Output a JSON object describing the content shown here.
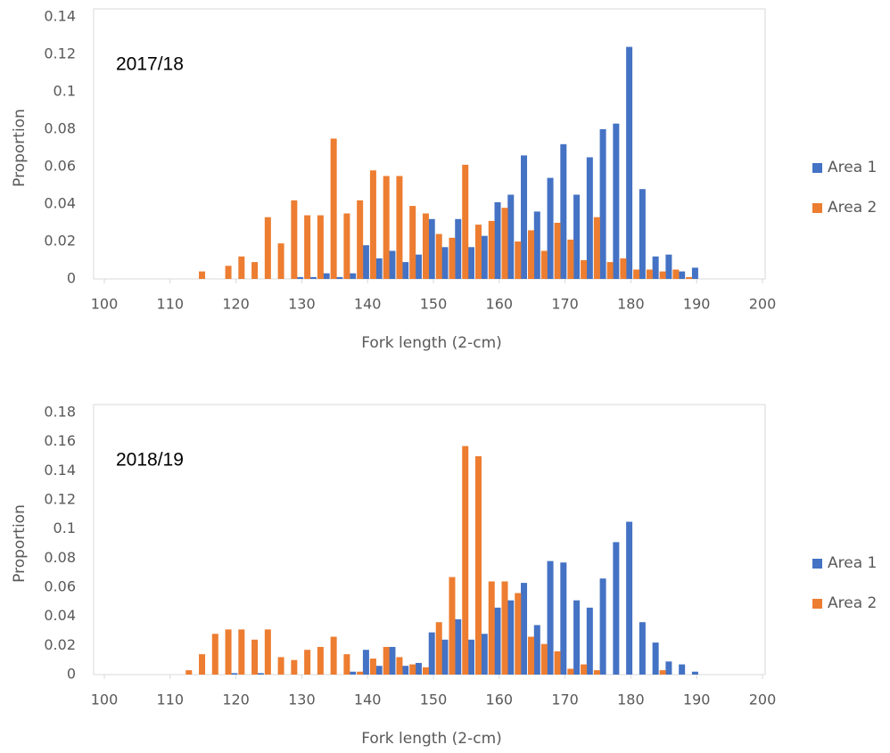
{
  "chart_data": [
    {
      "type": "bar",
      "annotation": "2017/18",
      "x_label": "Fork length (2-cm)",
      "y_label": "Proportion",
      "x": [
        100,
        102,
        104,
        106,
        108,
        110,
        112,
        114,
        116,
        118,
        120,
        122,
        124,
        126,
        128,
        130,
        132,
        134,
        136,
        138,
        140,
        142,
        144,
        146,
        148,
        150,
        152,
        154,
        156,
        158,
        160,
        162,
        164,
        166,
        168,
        170,
        172,
        174,
        176,
        178,
        180,
        182,
        184,
        186,
        188,
        190,
        192,
        194,
        196,
        198
      ],
      "xlim": [
        100,
        200
      ],
      "xticks": [
        100,
        110,
        120,
        130,
        140,
        150,
        160,
        170,
        180,
        190,
        200
      ],
      "ylim": [
        0,
        0.14
      ],
      "yticks": [
        0,
        0.02,
        0.04,
        0.06,
        0.08,
        0.1,
        0.12,
        0.14
      ],
      "legend": "right",
      "series": [
        {
          "name": "Area 1",
          "color": "#4472c4",
          "values": [
            0,
            0,
            0,
            0,
            0,
            0,
            0,
            0,
            0,
            0,
            0,
            0,
            0,
            0,
            0,
            0.001,
            0.001,
            0.003,
            0.001,
            0.003,
            0.018,
            0.011,
            0.015,
            0.009,
            0.013,
            0.032,
            0.017,
            0.032,
            0.017,
            0.023,
            0.041,
            0.045,
            0.066,
            0.036,
            0.054,
            0.072,
            0.045,
            0.065,
            0.08,
            0.083,
            0.124,
            0.048,
            0.012,
            0.013,
            0.004,
            0.006,
            0,
            0,
            0,
            0
          ]
        },
        {
          "name": "Area 2",
          "color": "#ed7d31",
          "values": [
            0,
            0,
            0,
            0,
            0,
            0,
            0,
            0.004,
            0,
            0.007,
            0.012,
            0.009,
            0.033,
            0.019,
            0.042,
            0.034,
            0.034,
            0.075,
            0.035,
            0.042,
            0.058,
            0.055,
            0.055,
            0.039,
            0.035,
            0.024,
            0.022,
            0.061,
            0.029,
            0.031,
            0.038,
            0.02,
            0.026,
            0.015,
            0.03,
            0.021,
            0.01,
            0.033,
            0.009,
            0.011,
            0.005,
            0.005,
            0.004,
            0.005,
            0.001,
            0,
            0,
            0,
            0,
            0
          ]
        }
      ]
    },
    {
      "type": "bar",
      "annotation": "2018/19",
      "x_label": "Fork length (2-cm)",
      "y_label": "Proportion",
      "x": [
        100,
        102,
        104,
        106,
        108,
        110,
        112,
        114,
        116,
        118,
        120,
        122,
        124,
        126,
        128,
        130,
        132,
        134,
        136,
        138,
        140,
        142,
        144,
        146,
        148,
        150,
        152,
        154,
        156,
        158,
        160,
        162,
        164,
        166,
        168,
        170,
        172,
        174,
        176,
        178,
        180,
        182,
        184,
        186,
        188,
        190,
        192,
        194,
        196,
        198
      ],
      "xlim": [
        100,
        200
      ],
      "xticks": [
        100,
        110,
        120,
        130,
        140,
        150,
        160,
        170,
        180,
        190,
        200
      ],
      "ylim": [
        0,
        0.18
      ],
      "yticks": [
        0,
        0.02,
        0.04,
        0.06,
        0.08,
        0.1,
        0.12,
        0.14,
        0.16,
        0.18
      ],
      "legend": "right",
      "series": [
        {
          "name": "Area 1",
          "color": "#4472c4",
          "values": [
            0,
            0,
            0,
            0,
            0,
            0,
            0,
            0,
            0,
            0,
            0.001,
            0,
            0.001,
            0,
            0,
            0,
            0,
            0,
            0,
            0.002,
            0.017,
            0.006,
            0.019,
            0.006,
            0.008,
            0.029,
            0.024,
            0.038,
            0.024,
            0.028,
            0.046,
            0.051,
            0.063,
            0.034,
            0.078,
            0.077,
            0.051,
            0.046,
            0.066,
            0.091,
            0.105,
            0.036,
            0.022,
            0.009,
            0.007,
            0.002,
            0,
            0,
            0,
            0
          ]
        },
        {
          "name": "Area 2",
          "color": "#ed7d31",
          "values": [
            0,
            0,
            0,
            0,
            0,
            0,
            0.003,
            0.014,
            0.028,
            0.031,
            0.031,
            0.024,
            0.031,
            0.012,
            0.01,
            0.017,
            0.019,
            0.026,
            0.014,
            0.002,
            0.011,
            0.019,
            0.012,
            0.007,
            0.005,
            0.036,
            0.067,
            0.157,
            0.15,
            0.064,
            0.064,
            0.056,
            0.026,
            0.021,
            0.016,
            0.004,
            0.007,
            0.003,
            0,
            0,
            0,
            0,
            0.003,
            0,
            0,
            0,
            0,
            0,
            0,
            0
          ]
        }
      ]
    }
  ]
}
